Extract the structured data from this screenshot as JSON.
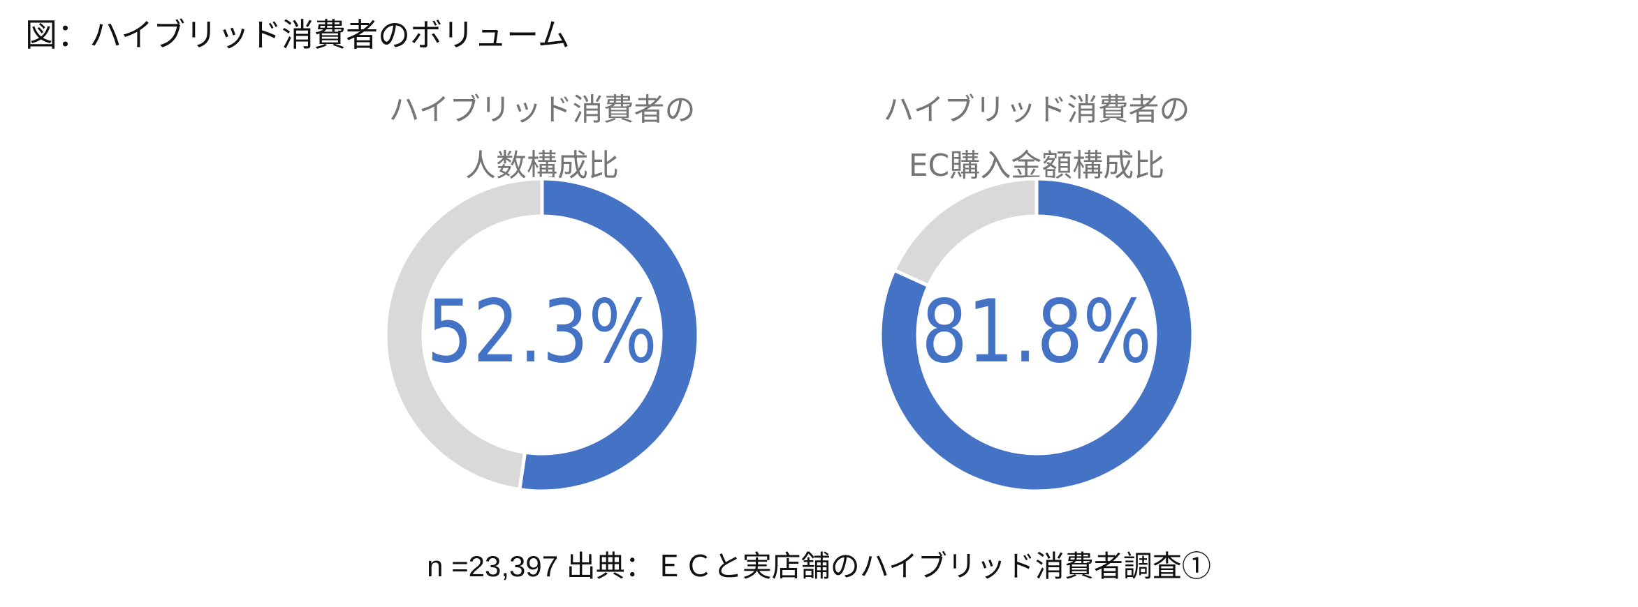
{
  "figure": {
    "title": "図：ハイブリッド消費者のボリューム",
    "caption": "n =23,397 出典：ＥＣと実店舗のハイブリッド消費者調査①"
  },
  "colors": {
    "accent": "#4472C4",
    "remainder": "#D9D9D9",
    "title_gray": "#757575"
  },
  "chart_data": [
    {
      "type": "pie",
      "title_line1": "ハイブリッド消費者の",
      "title_line2": "人数構成比",
      "center_label": "52.3%",
      "slices": [
        {
          "name": "ハイブリッド消費者",
          "value": 52.3,
          "color": "#4472C4"
        },
        {
          "name": "",
          "value": 47.7,
          "color": "#D9D9D9"
        }
      ]
    },
    {
      "type": "pie",
      "title_line1": "ハイブリッド消費者の",
      "title_line2": "EC購入金額構成比",
      "center_label": "81.8%",
      "slices": [
        {
          "name": "ハイブリッド消費者",
          "value": 81.8,
          "color": "#4472C4"
        },
        {
          "name": "",
          "value": 18.2,
          "color": "#D9D9D9"
        }
      ]
    }
  ]
}
